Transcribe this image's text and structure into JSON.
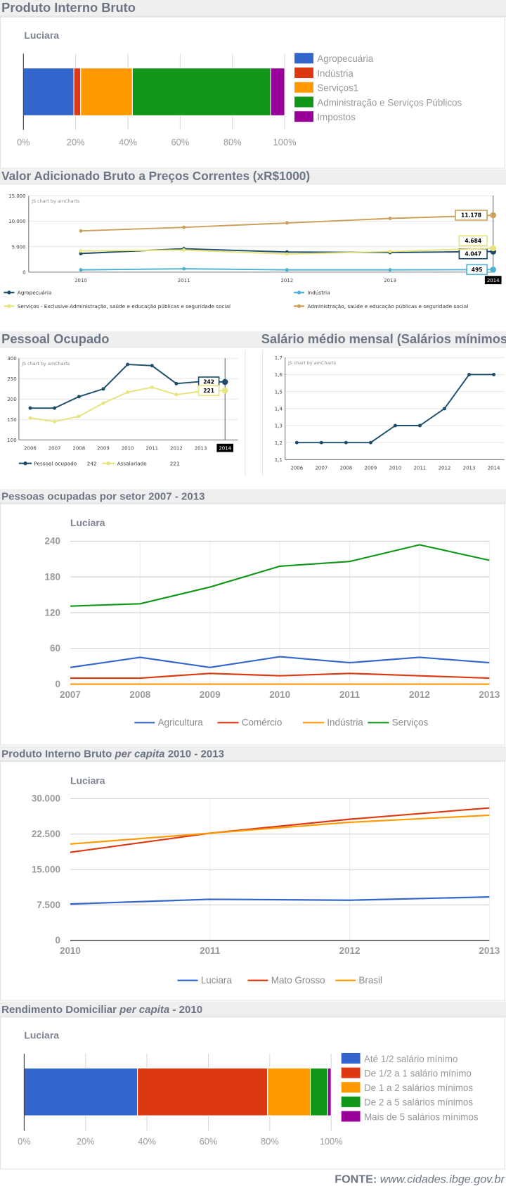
{
  "sections": {
    "pib": {
      "title": "Produto Interno Bruto"
    },
    "valor_adicionado": {
      "title": "Valor Adicionado Bruto a Preços Correntes (xR$1000)"
    },
    "pessoal": {
      "title": "Pessoal Ocupado"
    },
    "salario": {
      "title": "Salário médio mensal (Salários mínimos)"
    },
    "setor": {
      "title": "Pessoas ocupadas por setor 2007 - 2013"
    },
    "pib_per_capita": {
      "title_pre": "Produto Interno Bruto ",
      "title_em": "per capita",
      "title_post": " 2010 - 2013"
    },
    "rendimento": {
      "title_pre": "Rendimento Domiciliar ",
      "title_em": "per capita",
      "title_post": " - 2010"
    }
  },
  "source": {
    "label": "FONTE:",
    "url": "www.cidades.ibge.gov.br"
  },
  "chart_data": [
    {
      "type": "bar",
      "stacked": true,
      "orientation": "horizontal",
      "subtitle": "Luciara",
      "xlim": [
        0,
        100
      ],
      "xtick_values": [
        0,
        20,
        40,
        60,
        80,
        100
      ],
      "xtick_labels": [
        "0%",
        "20%",
        "40%",
        "60%",
        "80%",
        "100%"
      ],
      "legend": "right",
      "series": [
        {
          "name": "Agropecuária",
          "value": 19.3,
          "color": "#3366cc"
        },
        {
          "name": "Indústria",
          "value": 2.6,
          "color": "#dc3912"
        },
        {
          "name": "Serviços1",
          "value": 19.8,
          "color": "#ff9900"
        },
        {
          "name": "Administração e Serviços Públicos",
          "value": 52.9,
          "color": "#109618"
        },
        {
          "name": "Impostos",
          "value": 5.4,
          "color": "#990099"
        }
      ]
    },
    {
      "type": "line",
      "watermark": "JS chart by amCharts",
      "categories": [
        "2010",
        "2011",
        "2012",
        "2013",
        "2014"
      ],
      "ylim": [
        0,
        15000
      ],
      "ytick_values": [
        0,
        5000,
        10000,
        15000
      ],
      "ytick_labels": [
        "0",
        "5.000",
        "10.000",
        "15.000"
      ],
      "cursor_label": "2014",
      "legend": "bottom",
      "series": [
        {
          "name": "Agropecuária",
          "values": [
            3650,
            4600,
            3950,
            3850,
            4047
          ],
          "balloon": "4.047",
          "color": "#1c4d6b"
        },
        {
          "name": "Indústria",
          "values": [
            450,
            650,
            450,
            450,
            495
          ],
          "balloon": "495",
          "color": "#4fb2d2"
        },
        {
          "name": "Serviços - Exclusive Administração, saúde e educação públicas e seguridade social",
          "values": [
            4150,
            4350,
            3550,
            4050,
            4684
          ],
          "balloon": "4.684",
          "color": "#e8e37c"
        },
        {
          "name": "Administração, saúde e educação públicas e seguridade social",
          "values": [
            8100,
            8800,
            9650,
            10550,
            11178
          ],
          "balloon": "11.178",
          "color": "#c9a15b"
        }
      ]
    },
    {
      "type": "line",
      "watermark": "JS chart by amCharts",
      "categories": [
        "2006",
        "2007",
        "2008",
        "2009",
        "2010",
        "2011",
        "2012",
        "2013",
        "2014"
      ],
      "ylim": [
        100,
        300
      ],
      "ytick_values": [
        100,
        150,
        200,
        250,
        300
      ],
      "ytick_labels": [
        "100",
        "150",
        "200",
        "250",
        "300"
      ],
      "cursor_label": "2014",
      "legend": "bottom",
      "series": [
        {
          "name": "Pessoal ocupado",
          "values": [
            178,
            178,
            206,
            225,
            285,
            282,
            238,
            243,
            242
          ],
          "balloon": "242",
          "legend_value": "242",
          "color": "#1c4d6b"
        },
        {
          "name": "Assalariado",
          "values": [
            154,
            145,
            158,
            190,
            217,
            229,
            211,
            219,
            221
          ],
          "balloon": "221",
          "legend_value": "221",
          "color": "#e8e37c"
        }
      ]
    },
    {
      "type": "line",
      "watermark": "JS chart by amCharts",
      "categories": [
        "2006",
        "2007",
        "2008",
        "2009",
        "2010",
        "2011",
        "2012",
        "2013",
        "2014"
      ],
      "ylim": [
        1.1,
        1.7
      ],
      "ytick_values": [
        1.1,
        1.2,
        1.3,
        1.4,
        1.5,
        1.6,
        1.7
      ],
      "ytick_labels": [
        "1,1",
        "1,2",
        "1,3",
        "1,4",
        "1,5",
        "1,6",
        "1,7"
      ],
      "series": [
        {
          "values": [
            1.2,
            1.2,
            1.2,
            1.2,
            1.3,
            1.3,
            1.4,
            1.6,
            1.6
          ],
          "color": "#1c4d6b"
        }
      ]
    },
    {
      "type": "line",
      "subtitle": "Luciara",
      "categories": [
        "2007",
        "2008",
        "2009",
        "2010",
        "2011",
        "2012",
        "2013"
      ],
      "ylim": [
        0,
        240
      ],
      "ytick_values": [
        0,
        60,
        120,
        180,
        240
      ],
      "ytick_labels": [
        "0",
        "60",
        "120",
        "180",
        "240"
      ],
      "legend": "bottom",
      "series": [
        {
          "name": "Agricultura",
          "values": [
            28,
            45,
            28,
            46,
            36,
            45,
            36
          ],
          "color": "#3366cc"
        },
        {
          "name": "Comércio",
          "values": [
            10,
            10,
            18,
            14,
            18,
            14,
            10
          ],
          "color": "#dc3912"
        },
        {
          "name": "Indústria",
          "values": [
            0,
            0,
            0,
            0,
            0,
            0,
            0
          ],
          "color": "#ff9900"
        },
        {
          "name": "Serviços",
          "values": [
            131,
            135,
            163,
            198,
            206,
            234,
            208
          ],
          "color": "#109618"
        }
      ]
    },
    {
      "type": "line",
      "subtitle": "Luciara",
      "categories": [
        "2010",
        "2011",
        "2012",
        "2013"
      ],
      "ylim": [
        0,
        30000
      ],
      "ytick_values": [
        0,
        7500,
        15000,
        22500,
        30000
      ],
      "ytick_labels": [
        "0",
        "7.500",
        "15.000",
        "22.500",
        "30.000"
      ],
      "legend": "bottom",
      "series": [
        {
          "name": "Luciara",
          "values": [
            7700,
            8700,
            8500,
            9200
          ],
          "color": "#3366cc"
        },
        {
          "name": "Mato Grosso",
          "values": [
            18650,
            22700,
            25650,
            28050
          ],
          "color": "#dc3912"
        },
        {
          "name": "Brasil",
          "values": [
            20400,
            22700,
            25000,
            26500
          ],
          "color": "#ff9900"
        }
      ]
    },
    {
      "type": "bar",
      "stacked": true,
      "orientation": "horizontal",
      "subtitle": "Luciara",
      "xlim": [
        0,
        100
      ],
      "xtick_values": [
        0,
        20,
        40,
        60,
        80,
        100
      ],
      "xtick_labels": [
        "0%",
        "20%",
        "40%",
        "60%",
        "80%",
        "100%"
      ],
      "legend": "right",
      "series": [
        {
          "name": "Até 1/2 salário mínimo",
          "value": 36.9,
          "color": "#3366cc"
        },
        {
          "name": "De 1/2 a 1 salário mínimo",
          "value": 42.4,
          "color": "#dc3912"
        },
        {
          "name": "De 1 a 2 salários mínimos",
          "value": 13.9,
          "color": "#ff9900"
        },
        {
          "name": "De 2 a 5 salários mínimos",
          "value": 5.7,
          "color": "#109618"
        },
        {
          "name": "Mais de 5 salários mínimos",
          "value": 1.1,
          "color": "#990099"
        }
      ]
    }
  ]
}
